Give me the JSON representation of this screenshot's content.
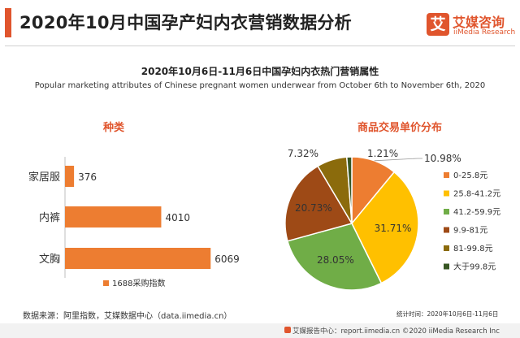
{
  "header": {
    "title": "2020年10月中国孕产妇内衣营销数据分析",
    "logo_mark": "艾",
    "logo_cn": "艾媒咨询",
    "logo_en": "iiMedia Research"
  },
  "subtitle_cn": "2020年10月6日-11月6日中国孕妇内衣热门营销属性",
  "subtitle_en": "Popular marketing attributes of Chinese pregnant women underwear from October 6th to November 6th, 2020",
  "colors": {
    "accent": "#e0552d",
    "bar": "#ed7d31"
  },
  "chart_data": [
    {
      "type": "bar",
      "orientation": "horizontal",
      "title": "种类",
      "categories": [
        "家居服",
        "内裤",
        "文胸"
      ],
      "values": [
        376,
        4010,
        6069
      ],
      "series_name": "1688采购指数",
      "xlim": [
        0,
        6500
      ]
    },
    {
      "type": "pie",
      "title": "商品交易单价分布",
      "labels": [
        "0-25.8元",
        "25.8-41.2元",
        "41.2-59.9元",
        "9.9-81元",
        "81-99.8元",
        "大于99.8元"
      ],
      "values": [
        10.98,
        31.71,
        28.05,
        20.73,
        7.32,
        1.21
      ],
      "value_labels": [
        "10.98%",
        "31.71%",
        "28.05%",
        "20.73%",
        "7.32%",
        "1.21%"
      ],
      "colors": [
        "#ed7d31",
        "#ffc000",
        "#70ad47",
        "#9e4a16",
        "#8b6b0c",
        "#375623"
      ]
    }
  ],
  "source": "数据来源：阿里指数，艾媒数据中心（data.iimedia.cn）",
  "period": "统计时间：2020年10月6日-11月6日",
  "footer": "艾媒报告中心：report.iimedia.cn  ©2020  iiMedia Research  Inc"
}
